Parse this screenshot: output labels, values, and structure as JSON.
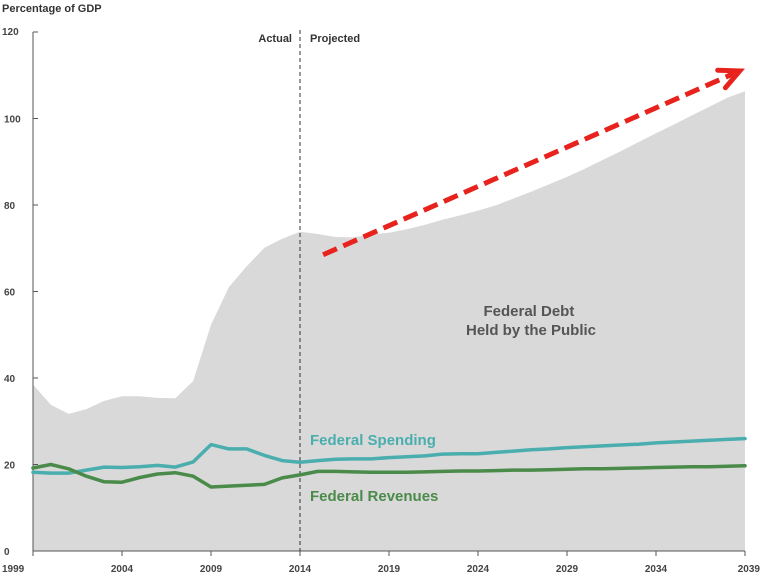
{
  "chart_data": {
    "type": "line",
    "ylabel": "Percentage of GDP",
    "ylim": [
      0,
      120
    ],
    "yticks": [
      "0",
      "20",
      "40",
      "60",
      "80",
      "100",
      "120"
    ],
    "xlim": [
      1999,
      2039
    ],
    "xticks": [
      "1999",
      "2004",
      "2009",
      "2014",
      "2019",
      "2024",
      "2029",
      "2034",
      "2039"
    ],
    "divider": {
      "x": 2014,
      "left_label": "Actual",
      "right_label": "Projected"
    },
    "colors": {
      "debt": "#d9d9d9",
      "spending": "#4aaeae",
      "revenues": "#4a8b4a",
      "arrow": "#e8231e",
      "axis": "#555555"
    },
    "area": {
      "name": "Federal Debt Held by the Public",
      "label_lines": [
        "Federal Debt",
        "Held by the Public"
      ],
      "x": [
        1999,
        2000,
        2001,
        2002,
        2003,
        2004,
        2005,
        2006,
        2007,
        2008,
        2009,
        2010,
        2011,
        2012,
        2013,
        2014,
        2015,
        2016,
        2017,
        2018,
        2019,
        2020,
        2021,
        2022,
        2023,
        2024,
        2025,
        2026,
        2027,
        2028,
        2029,
        2030,
        2031,
        2032,
        2033,
        2034,
        2035,
        2036,
        2037,
        2038,
        2039
      ],
      "values": [
        38.5,
        33.8,
        31.7,
        32.8,
        34.7,
        35.8,
        35.8,
        35.4,
        35.3,
        39.3,
        52.3,
        61.0,
        65.8,
        70.1,
        72.2,
        73.8,
        73.3,
        72.6,
        72.5,
        73.2,
        73.6,
        74.4,
        75.4,
        76.6,
        77.6,
        78.7,
        79.9,
        81.5,
        83.1,
        84.8,
        86.5,
        88.4,
        90.4,
        92.4,
        94.5,
        96.6,
        98.6,
        100.7,
        102.7,
        104.8,
        106.3
      ]
    },
    "series": [
      {
        "name": "Federal Spending",
        "label": "Federal Spending",
        "x": [
          1999,
          2000,
          2001,
          2002,
          2003,
          2004,
          2005,
          2006,
          2007,
          2008,
          2009,
          2010,
          2011,
          2012,
          2013,
          2014,
          2015,
          2016,
          2017,
          2018,
          2019,
          2020,
          2021,
          2022,
          2023,
          2024,
          2025,
          2026,
          2027,
          2028,
          2029,
          2030,
          2031,
          2032,
          2033,
          2034,
          2035,
          2036,
          2037,
          2038,
          2039
        ],
        "values": [
          18.2,
          18.0,
          18.0,
          18.7,
          19.4,
          19.3,
          19.5,
          19.8,
          19.4,
          20.6,
          24.6,
          23.6,
          23.6,
          22.1,
          20.9,
          20.5,
          20.9,
          21.2,
          21.3,
          21.3,
          21.6,
          21.8,
          22.0,
          22.4,
          22.5,
          22.5,
          22.8,
          23.1,
          23.4,
          23.6,
          23.9,
          24.1,
          24.3,
          24.5,
          24.7,
          25.0,
          25.2,
          25.4,
          25.6,
          25.8,
          26.0
        ]
      },
      {
        "name": "Federal Revenues",
        "label": "Federal Revenues",
        "x": [
          1999,
          2000,
          2001,
          2002,
          2003,
          2004,
          2005,
          2006,
          2007,
          2008,
          2009,
          2010,
          2011,
          2012,
          2013,
          2014,
          2015,
          2016,
          2017,
          2018,
          2019,
          2020,
          2021,
          2022,
          2023,
          2024,
          2025,
          2026,
          2027,
          2028,
          2029,
          2030,
          2031,
          2032,
          2033,
          2034,
          2035,
          2036,
          2037,
          2038,
          2039
        ],
        "values": [
          19.2,
          20.0,
          19.0,
          17.3,
          16.0,
          15.9,
          17.0,
          17.8,
          18.1,
          17.3,
          14.8,
          15.0,
          15.2,
          15.4,
          16.9,
          17.6,
          18.4,
          18.4,
          18.3,
          18.2,
          18.2,
          18.2,
          18.3,
          18.4,
          18.5,
          18.5,
          18.6,
          18.7,
          18.7,
          18.8,
          18.9,
          19.0,
          19.0,
          19.1,
          19.2,
          19.3,
          19.4,
          19.5,
          19.5,
          19.6,
          19.7
        ]
      }
    ],
    "annotation": {
      "type": "trend-arrow",
      "from": [
        2015.3,
        68.5
      ],
      "to": [
        2038.7,
        111
      ]
    }
  }
}
